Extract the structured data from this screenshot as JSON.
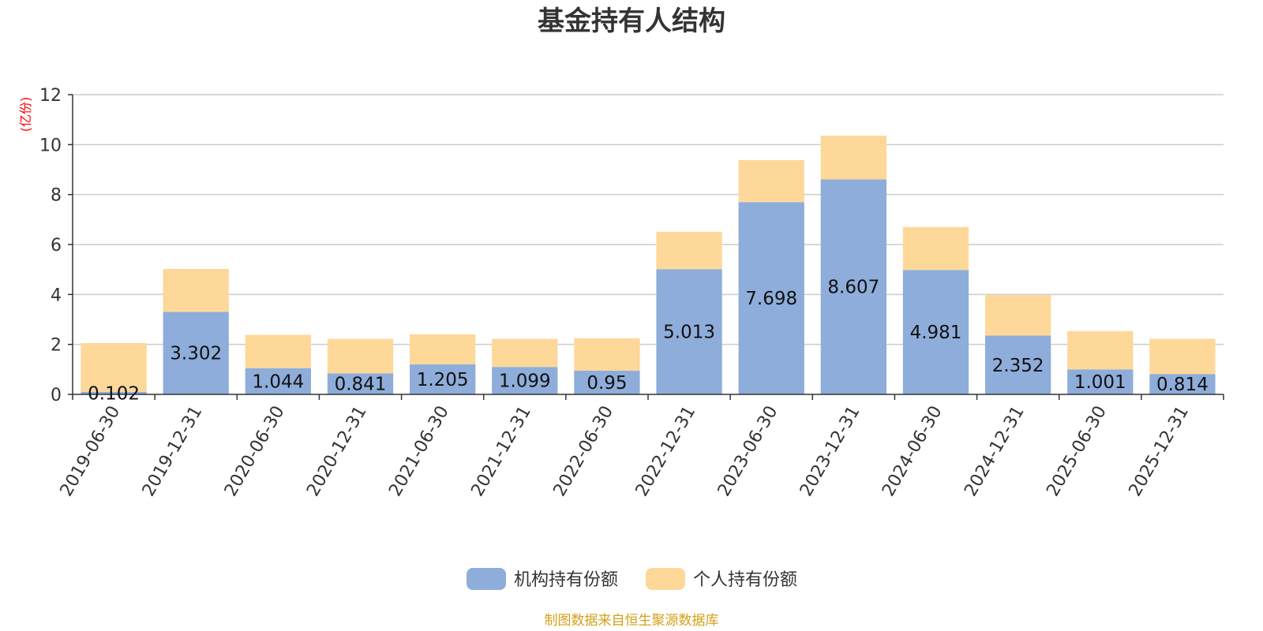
{
  "chart_data": {
    "type": "bar",
    "stacked": true,
    "title": "基金持有人结构",
    "ylabel": "(亿份)",
    "ylim": [
      0,
      12
    ],
    "yticks": [
      0,
      2,
      4,
      6,
      8,
      10,
      12
    ],
    "categories": [
      "2019-06-30",
      "2019-12-31",
      "2020-06-30",
      "2020-12-31",
      "2021-06-30",
      "2021-12-31",
      "2022-06-30",
      "2022-12-31",
      "2023-06-30",
      "2023-12-31",
      "2024-06-30",
      "2024-12-31",
      "2025-06-30",
      "2025-12-31"
    ],
    "series": [
      {
        "name": "机构持有份额",
        "color": "#8eadda",
        "values": [
          0.102,
          3.302,
          1.044,
          0.841,
          1.205,
          1.099,
          0.95,
          5.013,
          7.698,
          8.607,
          4.981,
          2.352,
          1.001,
          0.814
        ],
        "labels": [
          "0.102",
          "3.302",
          "1.044",
          "0.841",
          "1.205",
          "1.099",
          "0.95",
          "5.013",
          "7.698",
          "8.607",
          "4.981",
          "2.352",
          "1.001",
          "0.814"
        ]
      },
      {
        "name": "个人持有份额",
        "color": "#fdd899",
        "values": [
          1.95,
          1.72,
          1.34,
          1.38,
          1.2,
          1.12,
          1.3,
          1.5,
          1.68,
          1.75,
          1.72,
          1.62,
          1.53,
          1.41
        ]
      }
    ],
    "grid": true,
    "legend": "bottom-center"
  },
  "colors": {
    "unit_label": "#ff0000",
    "source_text": "#d4a017",
    "gridline": "#cccccc",
    "axis": "#333333"
  },
  "source": "制图数据来自恒生聚源数据库"
}
